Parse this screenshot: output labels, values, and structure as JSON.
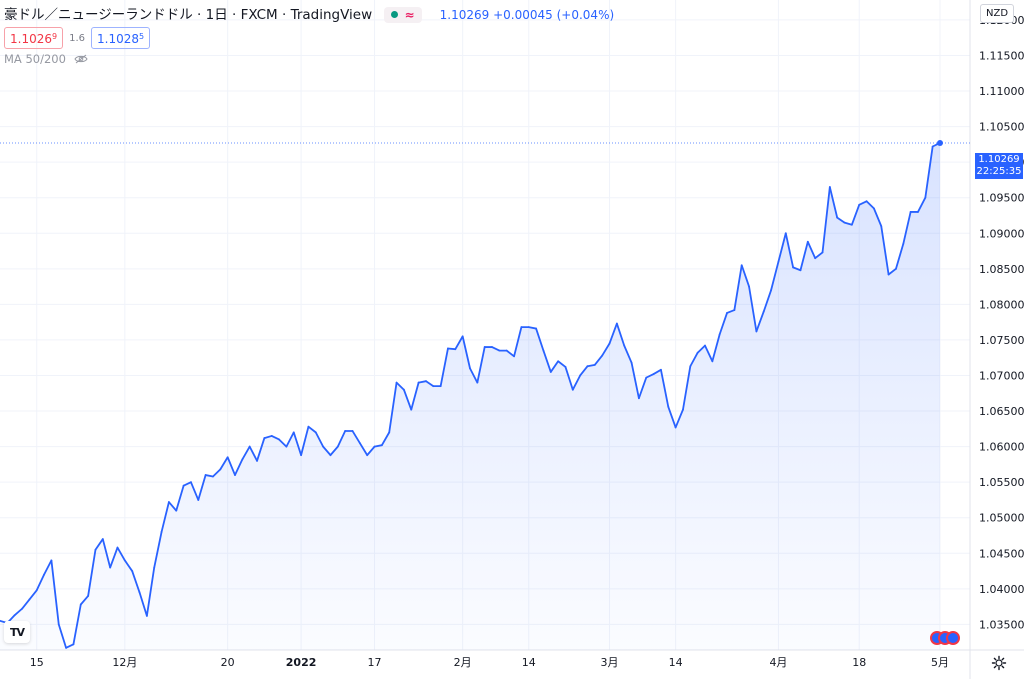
{
  "legend": {
    "symbol": "豪ドル／ニュージーランドドル",
    "interval": "1日",
    "exchange": "FXCM",
    "source": "TradingView",
    "status_wave": "≈",
    "last_price": "1.10269",
    "change": "+0.00045",
    "change_pct": "(+0.04%)"
  },
  "quotes": {
    "sell_main": "1.1026",
    "sell_sup": "9",
    "spread": "1.6",
    "buy_main": "1.1028",
    "buy_sup": "5"
  },
  "indicator": {
    "label": "MA 50/200"
  },
  "currency_button": "NZD",
  "price_label": {
    "price": "1.10269",
    "countdown": "22:25:35"
  },
  "tv_logo": "TV",
  "colors": {
    "line": "#2962ff",
    "area_top": "#2962ff",
    "grid": "#f0f3fa",
    "accent": "#2962ff"
  },
  "icons": {
    "visibility": "eye-off-icon",
    "settings": "gear-icon",
    "events": "flag-events-icon"
  },
  "chart_data": {
    "type": "area",
    "title": "",
    "ylim": [
      1.0314,
      1.1228
    ],
    "grid": true,
    "y_ticks": [
      "1.12000",
      "1.11500",
      "1.11000",
      "1.10500",
      "1.10000",
      "1.09500",
      "1.09000",
      "1.08500",
      "1.08000",
      "1.07500",
      "1.07000",
      "1.06500",
      "1.06000",
      "1.05500",
      "1.05000",
      "1.04500",
      "1.04000",
      "1.03500"
    ],
    "x_ticks": [
      {
        "label": "15",
        "index": 5,
        "bold": false
      },
      {
        "label": "12月",
        "index": 17,
        "bold": false
      },
      {
        "label": "20",
        "index": 31,
        "bold": false
      },
      {
        "label": "2022",
        "index": 41,
        "bold": true
      },
      {
        "label": "17",
        "index": 51,
        "bold": false
      },
      {
        "label": "2月",
        "index": 63,
        "bold": false
      },
      {
        "label": "14",
        "index": 72,
        "bold": false
      },
      {
        "label": "3月",
        "index": 83,
        "bold": false
      },
      {
        "label": "14",
        "index": 92,
        "bold": false
      },
      {
        "label": "4月",
        "index": 106,
        "bold": false
      },
      {
        "label": "18",
        "index": 117,
        "bold": false
      },
      {
        "label": "5月",
        "index": 128,
        "bold": false
      }
    ],
    "values": [
      1.0355,
      1.0352,
      1.0363,
      1.0372,
      1.0385,
      1.0398,
      1.042,
      1.044,
      1.035,
      1.0317,
      1.0322,
      1.0378,
      1.039,
      1.0455,
      1.047,
      1.043,
      1.0458,
      1.044,
      1.0425,
      1.0395,
      1.0362,
      1.043,
      1.048,
      1.0522,
      1.051,
      1.0545,
      1.055,
      1.0525,
      1.056,
      1.0558,
      1.0568,
      1.0585,
      1.056,
      1.0582,
      1.06,
      1.058,
      1.0612,
      1.0615,
      1.061,
      1.06,
      1.062,
      1.0588,
      1.0628,
      1.062,
      1.06,
      1.0588,
      1.06,
      1.0622,
      1.0622,
      1.0605,
      1.0588,
      1.06,
      1.0602,
      1.062,
      1.069,
      1.068,
      1.0652,
      1.069,
      1.0692,
      1.0685,
      1.0685,
      1.0738,
      1.0737,
      1.0755,
      1.071,
      1.069,
      1.074,
      1.074,
      1.0735,
      1.0735,
      1.0727,
      1.0768,
      1.0768,
      1.0766,
      1.0735,
      1.0705,
      1.072,
      1.0712,
      1.068,
      1.07,
      1.0713,
      1.0715,
      1.0728,
      1.0745,
      1.0773,
      1.0742,
      1.0718,
      1.0668,
      1.0697,
      1.0702,
      1.0708,
      1.0656,
      1.0627,
      1.0652,
      1.0713,
      1.0732,
      1.0742,
      1.072,
      1.0758,
      1.0788,
      1.0792,
      1.0855,
      1.0825,
      1.0762,
      1.079,
      1.082,
      1.086,
      1.09,
      1.0852,
      1.0848,
      1.0888,
      1.0865,
      1.0873,
      1.0965,
      1.0922,
      1.0915,
      1.0912,
      1.094,
      1.0945,
      1.0935,
      1.091,
      1.0842,
      1.085,
      1.0885,
      1.093,
      1.093,
      1.095,
      1.1022,
      1.1027
    ]
  }
}
